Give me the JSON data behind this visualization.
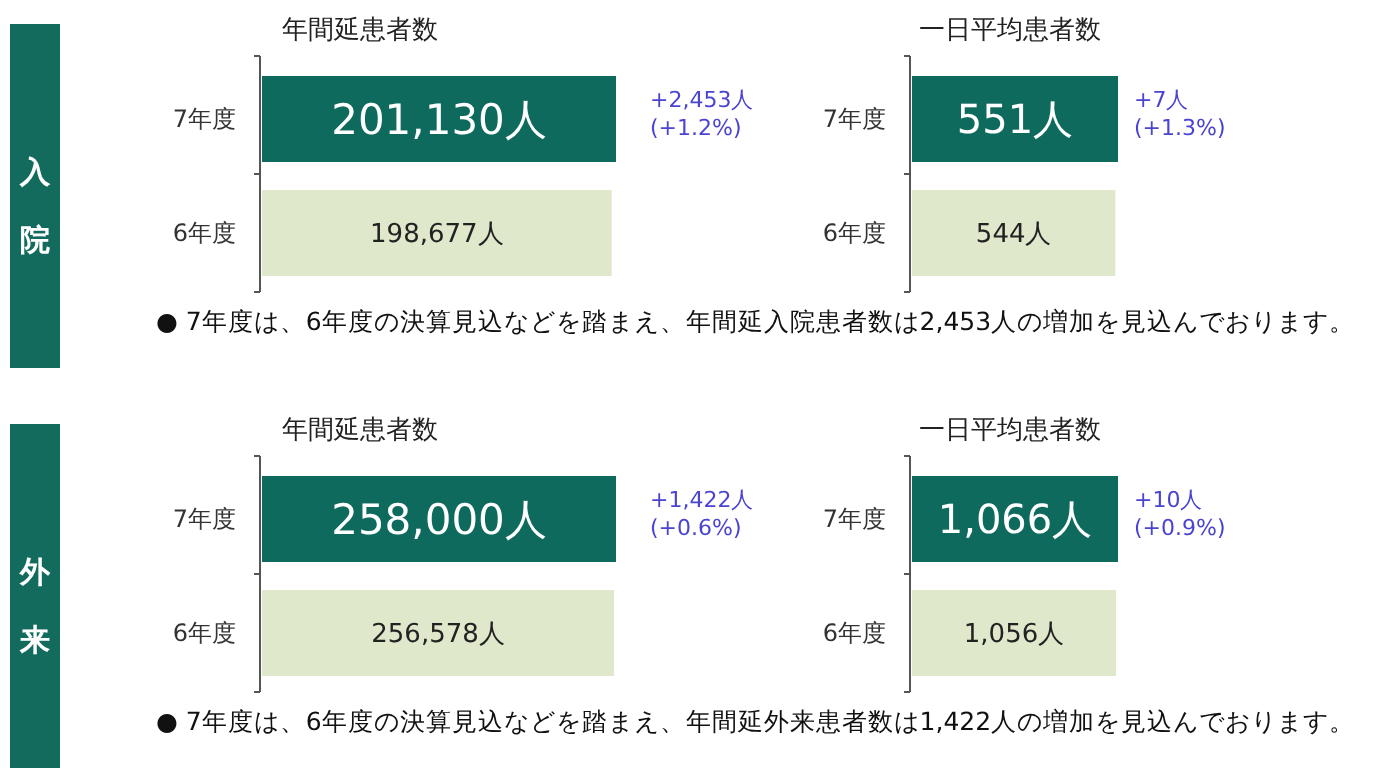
{
  "chart_data": [
    {
      "type": "bar",
      "orientation": "horizontal",
      "title": "年間延患者数",
      "categories": [
        "7年度",
        "6年度"
      ],
      "values": [
        201130,
        198677
      ],
      "colors": [
        "#0f6a5e",
        "#dfe8cb"
      ],
      "value_labels": [
        "201,130人",
        "198,677人"
      ],
      "annotations": [
        "入院",
        "+2,453人\n(+1.2%)",
        "● 7年度は、6年度の決算見込などを踏まえ、年間延入院患者数は2,453人の増加を見込んでおります。"
      ]
    },
    {
      "type": "bar",
      "orientation": "horizontal",
      "title": "一日平均患者数",
      "categories": [
        "7年度",
        "6年度"
      ],
      "values": [
        551,
        544
      ],
      "colors": [
        "#0f6a5e",
        "#dfe8cb"
      ],
      "value_labels": [
        "551人",
        "544人"
      ],
      "annotations": [
        "+7人\n(+1.3%)"
      ]
    },
    {
      "type": "bar",
      "orientation": "horizontal",
      "title": "年間延患者数",
      "categories": [
        "7年度",
        "6年度"
      ],
      "values": [
        258000,
        256578
      ],
      "colors": [
        "#0f6a5e",
        "#dfe8cb"
      ],
      "value_labels": [
        "258,000人",
        "256,578人"
      ],
      "annotations": [
        "外来",
        "+1,422人\n(+0.6%)",
        "● 7年度は、6年度の決算見込などを踏まえ、年間延外来患者数は1,422人の増加を見込んでおります。"
      ]
    },
    {
      "type": "bar",
      "orientation": "horizontal",
      "title": "一日平均患者数",
      "categories": [
        "7年度",
        "6年度"
      ],
      "values": [
        1066,
        1056
      ],
      "colors": [
        "#0f6a5e",
        "#dfe8cb"
      ],
      "value_labels": [
        "1,066人",
        "1,056人"
      ],
      "annotations": [
        "+10人\n(+0.9%)"
      ]
    }
  ]
}
